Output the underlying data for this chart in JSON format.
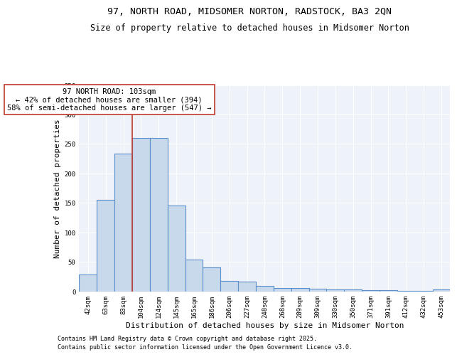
{
  "title1": "97, NORTH ROAD, MIDSOMER NORTON, RADSTOCK, BA3 2QN",
  "title2": "Size of property relative to detached houses in Midsomer Norton",
  "xlabel": "Distribution of detached houses by size in Midsomer Norton",
  "ylabel": "Number of detached properties",
  "categories": [
    "42sqm",
    "63sqm",
    "83sqm",
    "104sqm",
    "124sqm",
    "145sqm",
    "165sqm",
    "186sqm",
    "206sqm",
    "227sqm",
    "248sqm",
    "268sqm",
    "289sqm",
    "309sqm",
    "330sqm",
    "350sqm",
    "371sqm",
    "391sqm",
    "412sqm",
    "432sqm",
    "453sqm"
  ],
  "values": [
    28,
    155,
    234,
    260,
    260,
    146,
    54,
    40,
    17,
    16,
    9,
    5,
    5,
    4,
    3,
    3,
    2,
    2,
    1,
    1,
    3
  ],
  "bar_color": "#c9d9ec",
  "bar_edge_color": "#5b8fc9",
  "bar_linewidth": 0.8,
  "red_line_x": 2.5,
  "red_line_color": "#c0392b",
  "annotation_text": "97 NORTH ROAD: 103sqm\n← 42% of detached houses are smaller (394)\n58% of semi-detached houses are larger (547) →",
  "annotation_box_color": "white",
  "annotation_box_edge": "#c0392b",
  "annotation_fontsize": 7.5,
  "ylim": [
    0,
    350
  ],
  "yticks": [
    0,
    50,
    100,
    150,
    200,
    250,
    300,
    350
  ],
  "bg_color": "#eef2f9",
  "footer1": "Contains HM Land Registry data © Crown copyright and database right 2025.",
  "footer2": "Contains public sector information licensed under the Open Government Licence v3.0.",
  "title_fontsize": 9.5,
  "subtitle_fontsize": 8.5,
  "xlabel_fontsize": 8,
  "ylabel_fontsize": 8,
  "tick_fontsize": 6.5,
  "footer_fontsize": 6.0
}
